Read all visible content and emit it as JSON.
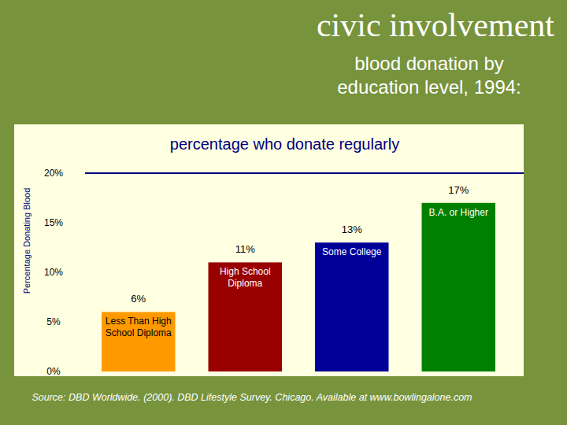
{
  "chart_data": {
    "type": "bar",
    "title": "civic involvement",
    "subtitle": "blood donation by education level, 1994:",
    "annotations": [
      "percentage who donate regularly",
      "Source: DBD Worldwide. (2000). DBD Lifestyle Survey. Chicago. Available at www.bowlingalone.com"
    ],
    "y_label": "Percentage Donating Blood",
    "categories": [
      "Less Than High School Diploma",
      "High School Diploma",
      "Some College",
      "B.A. or Higher"
    ],
    "values": [
      6,
      11,
      13,
      17
    ],
    "value_labels": [
      "6%",
      "11%",
      "13%",
      "17%"
    ],
    "data_labels": true,
    "colors": [
      "#ff9900",
      "#990000",
      "#000099",
      "#008000"
    ],
    "ylim": [
      0,
      20
    ],
    "yticks": [
      {
        "value": 0,
        "label": "0%"
      },
      {
        "value": 5,
        "label": "5%"
      },
      {
        "value": 10,
        "label": "10%"
      },
      {
        "value": 15,
        "label": "15%"
      },
      {
        "value": 20,
        "label": "20%"
      }
    ],
    "grid": false
  }
}
